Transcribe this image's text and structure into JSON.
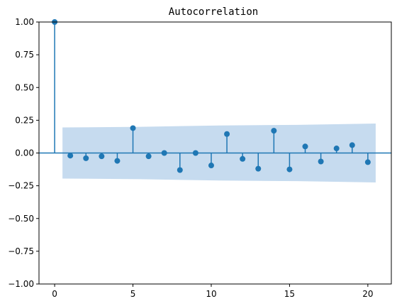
{
  "chart_data": {
    "type": "stem",
    "title": "Autocorrelation",
    "xlabel": "",
    "ylabel": "",
    "xlim": [
      -1,
      21.5
    ],
    "ylim": [
      -1.0,
      1.0
    ],
    "xticks": [
      0,
      5,
      10,
      15,
      20
    ],
    "yticks": [
      -1.0,
      -0.75,
      -0.5,
      -0.25,
      0.0,
      0.25,
      0.5,
      0.75,
      1.0
    ],
    "ytick_labels": [
      "−1.00",
      "−0.75",
      "−0.50",
      "−0.25",
      "0.00",
      "0.25",
      "0.50",
      "0.75",
      "1.00"
    ],
    "xtick_labels": [
      "0",
      "5",
      "10",
      "15",
      "20"
    ],
    "grid": false,
    "lags": [
      0,
      1,
      2,
      3,
      4,
      5,
      6,
      7,
      8,
      9,
      10,
      11,
      12,
      13,
      14,
      15,
      16,
      17,
      18,
      19,
      20
    ],
    "values": [
      1.0,
      -0.02,
      -0.04,
      -0.025,
      -0.06,
      0.19,
      -0.025,
      0.0,
      -0.13,
      0.0,
      -0.095,
      0.145,
      -0.045,
      -0.12,
      0.17,
      -0.125,
      0.05,
      -0.065,
      0.035,
      0.06,
      -0.07
    ],
    "confidence_band": {
      "x": [
        0.5,
        5.5,
        10.5,
        15.5,
        20.5
      ],
      "upper": [
        0.195,
        0.2,
        0.21,
        0.215,
        0.225
      ]
    },
    "colors": {
      "stem": "#1f77b4",
      "band": "#c6dbef",
      "zero_line": "#1f77b4"
    }
  }
}
